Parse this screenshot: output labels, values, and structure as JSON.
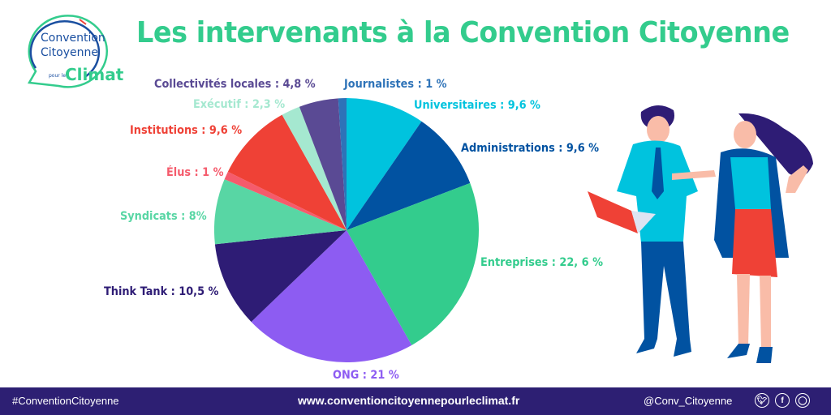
{
  "logo": {
    "line1": "Convention",
    "line2": "Citoyenne",
    "small": "pour le",
    "climat": "Climat"
  },
  "title": "Les intervenants à la Convention Citoyenne",
  "chart_data": {
    "type": "pie",
    "title": "Les intervenants à la Convention Citoyenne",
    "start_angle": "12 o'clock, clockwise",
    "categories": [
      "Universitaires",
      "Administrations",
      "Entreprises",
      "ONG",
      "Think Tank",
      "Syndicats",
      "Élus",
      "Institutions",
      "Exécutif",
      "Collectivités locales",
      "Journalistes"
    ],
    "values": [
      9.6,
      9.6,
      22.6,
      21,
      10.5,
      8,
      1,
      9.6,
      2.3,
      4.8,
      1
    ],
    "colors": [
      "#00c3de",
      "#0152a1",
      "#33cc8d",
      "#8d5cf2",
      "#2e1c75",
      "#58d6a4",
      "#f55b6c",
      "#ef4136",
      "#a5e8d0",
      "#5a4a94",
      "#2e73b8"
    ],
    "labels": [
      {
        "text": "Universitaires : 9,6 %",
        "color": "#00c3de"
      },
      {
        "text": "Administrations : 9,6 %",
        "color": "#0152a1"
      },
      {
        "text": "Entreprises : 22, 6 %",
        "color": "#33cc8d"
      },
      {
        "text": "ONG : 21 %",
        "color": "#8d5cf2"
      },
      {
        "text": "Think Tank : 10,5 %",
        "color": "#2e1c75"
      },
      {
        "text": "Syndicats : 8%",
        "color": "#58d6a4"
      },
      {
        "text": "Élus : 1 %",
        "color": "#f55b6c"
      },
      {
        "text": "Institutions : 9,6  %",
        "color": "#ef4136"
      },
      {
        "text": "Exécutif : 2,3 %",
        "color": "#a5e8d0"
      },
      {
        "text": "Collectivités locales : 4,8 %",
        "color": "#5a4a94"
      },
      {
        "text": "Journalistes : 1 %",
        "color": "#2e73b8"
      }
    ],
    "unit": "%",
    "legend": "none (direct labels)"
  },
  "footer": {
    "hashtag": "#ConventionCitoyenne",
    "url": "www.conventioncitoyennepourleclimat.fr",
    "handle": "@Conv_Citoyenne",
    "icons": [
      "twitter-icon",
      "facebook-icon",
      "instagram-icon"
    ],
    "bg_color": "#2d1f73"
  }
}
